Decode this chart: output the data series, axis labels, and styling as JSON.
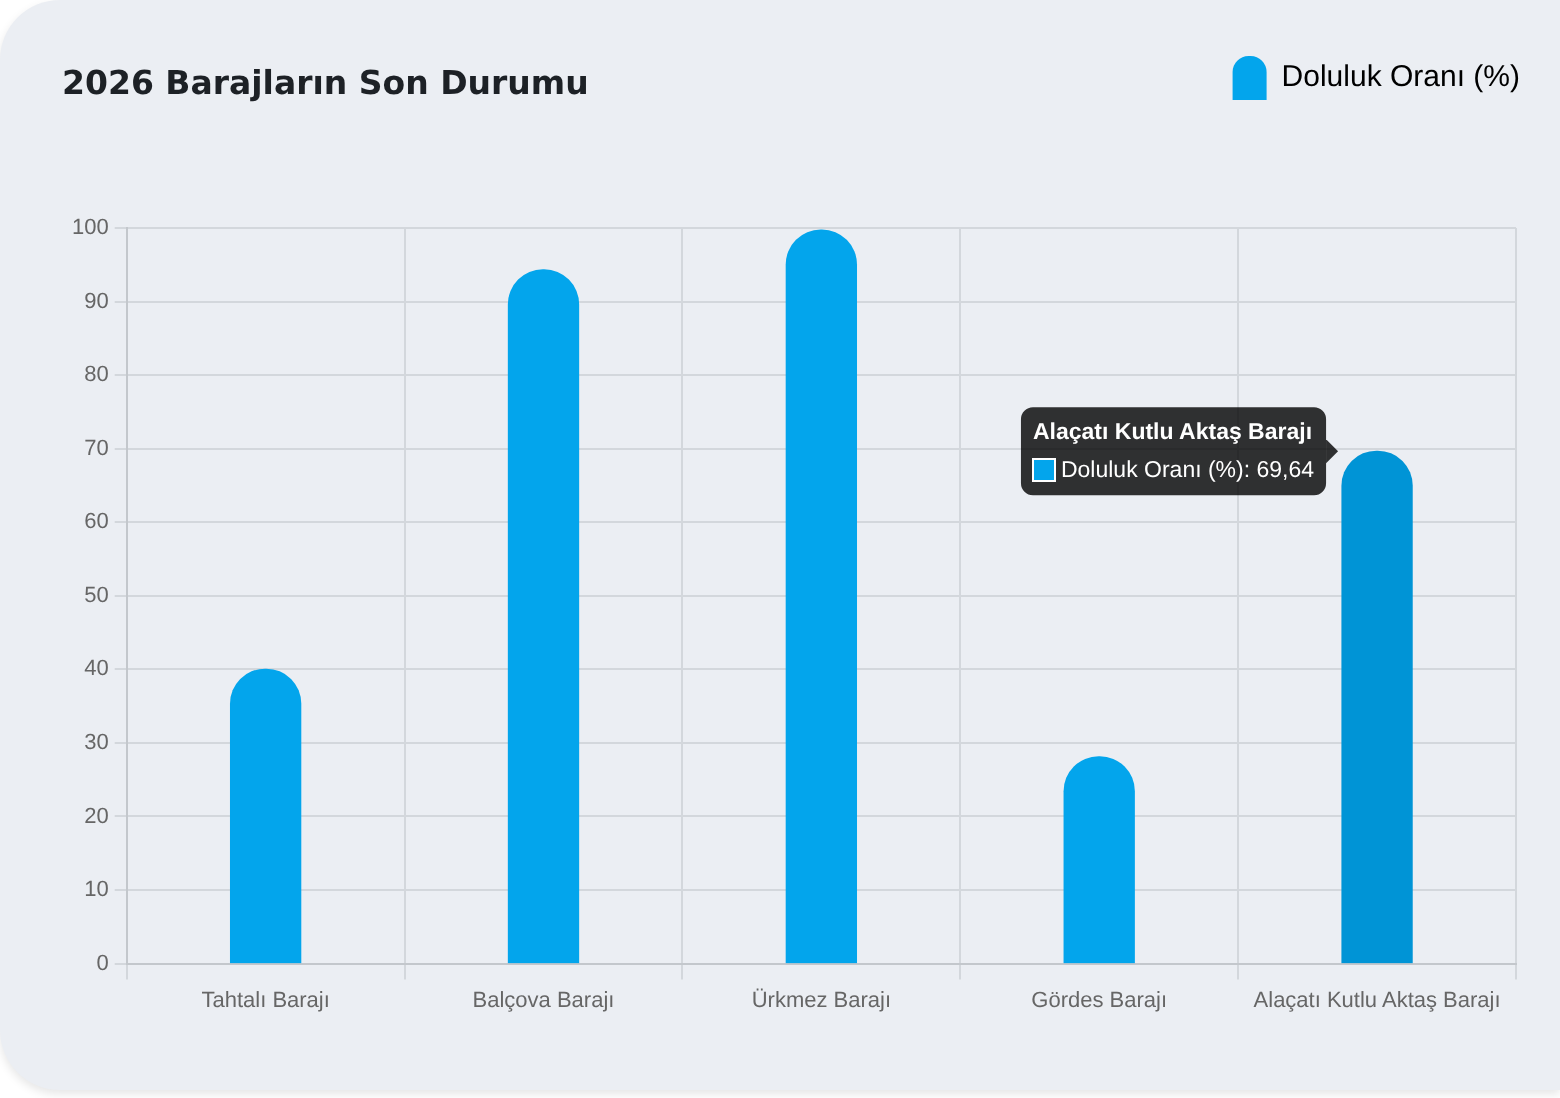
{
  "chart_data": {
    "type": "bar",
    "title": "2026 Barajların Son Durumu",
    "categories": [
      "Tahtalı Barajı",
      "Balçova Barajı",
      "Ürkmez Barajı",
      "Gördes Barajı",
      "Alaçatı Kutlu Aktaş Barajı"
    ],
    "series": [
      {
        "name": "Doluluk Oranı (%)",
        "color": "#03a5ec",
        "colors": [
          "#03a5ec",
          "#03a5ec",
          "#03a5ec",
          "#03a5ec",
          "#0094d6"
        ],
        "values": [
          40,
          94.3,
          99.7,
          28.1,
          69.64
        ]
      }
    ],
    "ylim": [
      0,
      100
    ],
    "yticks": [
      0,
      10,
      20,
      30,
      40,
      50,
      60,
      70,
      80,
      90,
      100
    ],
    "grid": true,
    "legend": "top right",
    "annotations": [
      {
        "text": "Alaçatı Kutlu Aktaş Barajı\nDoluluk Oranı (%): 69,64",
        "x": "Alaçatı Kutlu Aktaş Barajı",
        "y": 69.64
      }
    ]
  }
}
